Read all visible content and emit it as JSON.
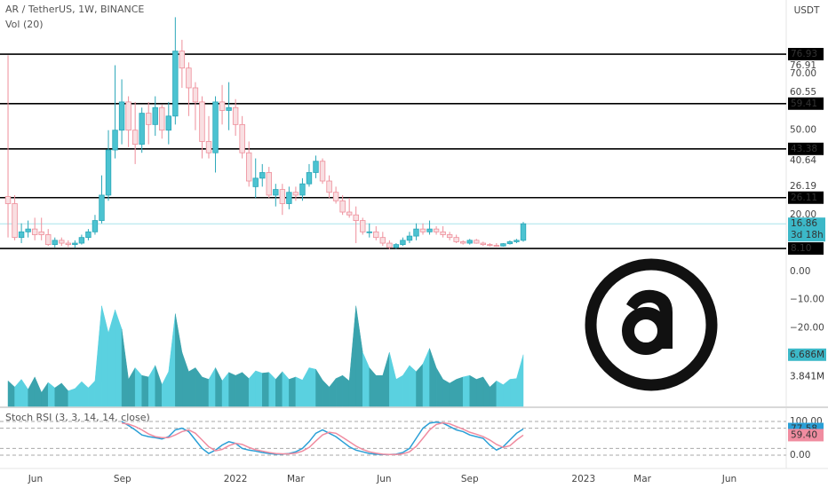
{
  "header": {
    "currency": "USDT"
  },
  "chart_data": [
    {
      "type": "candlestick",
      "title": "AR / TetherUS, 1W, BINANCE",
      "ylim": [
        -47.8,
        96.1
      ],
      "xlim": [
        -1.2,
        116.3
      ],
      "xticks": [
        {
          "value": 4.1,
          "label": "Jun"
        },
        {
          "value": 17.1,
          "label": "Sep"
        },
        {
          "value": 34,
          "label": "2022"
        },
        {
          "value": 43,
          "label": "Mar"
        },
        {
          "value": 56.2,
          "label": "Jun"
        },
        {
          "value": 69,
          "label": "Sep"
        },
        {
          "value": 86,
          "label": "2023"
        },
        {
          "value": 94.8,
          "label": "Mar"
        },
        {
          "value": 107.8,
          "label": "Jun"
        }
      ],
      "yticks": [
        76.91,
        {
          "value": 70,
          "label": "70.00"
        },
        60.55,
        {
          "value": 50,
          "label": "50.00"
        },
        40.64,
        26.19,
        {
          "value": 20,
          "label": "20.00"
        },
        8.51,
        {
          "value": 0,
          "label": "0.00"
        },
        {
          "value": -10,
          "label": "−10.00"
        },
        {
          "value": -20,
          "label": "−20.00"
        }
      ],
      "levels": [
        76.93,
        59.41,
        43.38,
        26.11,
        {
          "value": 8.1,
          "label": "8.10"
        }
      ],
      "countdown": "3d 18h",
      "colors": {
        "up": "#4cc3d1",
        "down": "#f9dfe2",
        "up_edge": "#2aa7b8",
        "down_edge": "#ee8e9a",
        "level": "#000000"
      },
      "candles": [
        [
          26.5,
          76.5,
          12,
          24
        ],
        [
          24,
          27,
          11,
          12
        ],
        [
          12,
          17,
          10,
          14
        ],
        [
          14,
          18,
          12,
          15
        ],
        [
          15,
          19,
          11,
          13
        ],
        [
          14,
          19,
          11,
          13
        ],
        [
          13,
          15,
          9,
          9.5
        ],
        [
          9.5,
          12,
          8.5,
          11
        ],
        [
          11,
          12,
          9,
          10
        ],
        [
          10,
          11,
          8.6,
          9.5
        ],
        [
          9.5,
          11,
          8.3,
          10
        ],
        [
          10,
          13,
          9.5,
          12
        ],
        [
          12,
          15,
          11,
          14
        ],
        [
          14,
          20,
          13,
          18
        ],
        [
          18,
          34,
          17,
          27
        ],
        [
          27,
          50,
          25,
          43
        ],
        [
          43,
          73,
          40,
          50
        ],
        [
          50,
          68,
          45,
          60
        ],
        [
          60,
          62,
          44,
          50
        ],
        [
          50,
          60,
          38,
          45
        ],
        [
          45,
          58,
          42,
          56
        ],
        [
          56,
          60,
          45,
          52
        ],
        [
          52,
          62,
          48,
          58
        ],
        [
          58,
          59,
          47,
          50
        ],
        [
          50,
          60,
          45,
          55
        ],
        [
          55,
          90,
          52,
          78
        ],
        [
          78,
          82,
          65,
          72
        ],
        [
          72,
          74,
          55,
          65
        ],
        [
          65,
          67,
          50,
          60
        ],
        [
          60,
          62,
          40,
          46
        ],
        [
          46,
          55,
          40,
          42
        ],
        [
          42,
          62,
          35,
          60
        ],
        [
          60,
          66,
          52,
          57
        ],
        [
          57,
          67,
          50,
          58
        ],
        [
          58,
          61,
          48,
          52
        ],
        [
          52,
          55,
          40,
          42
        ],
        [
          42,
          46,
          30,
          32
        ],
        [
          30,
          40,
          26,
          33
        ],
        [
          33,
          38,
          30,
          35
        ],
        [
          35,
          37,
          26,
          27
        ],
        [
          27,
          31,
          23,
          29
        ],
        [
          29,
          31,
          20,
          24
        ],
        [
          24,
          30,
          22,
          28
        ],
        [
          28,
          30,
          25,
          27
        ],
        [
          27,
          33,
          25,
          31
        ],
        [
          31,
          38,
          30,
          35
        ],
        [
          35,
          41,
          33,
          39
        ],
        [
          39,
          40,
          31,
          32
        ],
        [
          32,
          34,
          26,
          28
        ],
        [
          28,
          30,
          24,
          25
        ],
        [
          25,
          27,
          20,
          21
        ],
        [
          21,
          26,
          19,
          20
        ],
        [
          20,
          23,
          10,
          18
        ],
        [
          18,
          19,
          13,
          14
        ],
        [
          14,
          17,
          12,
          14
        ],
        [
          14,
          16,
          11,
          12
        ],
        [
          12,
          14,
          9,
          10
        ],
        [
          10,
          11,
          7.8,
          8.5
        ],
        [
          8.5,
          10,
          8,
          9.5
        ],
        [
          9.5,
          12,
          9,
          11
        ],
        [
          11,
          14,
          10,
          12.5
        ],
        [
          12.5,
          17,
          11,
          15
        ],
        [
          15,
          17,
          13,
          14
        ],
        [
          14,
          18,
          13,
          15
        ],
        [
          15,
          16,
          13,
          14
        ],
        [
          14,
          16,
          12,
          13
        ],
        [
          13,
          14,
          11,
          12
        ],
        [
          12,
          13,
          10,
          10.5
        ],
        [
          10.5,
          11,
          9.5,
          10
        ],
        [
          10,
          11.5,
          9.5,
          11
        ],
        [
          11,
          11.5,
          9.8,
          10
        ],
        [
          10,
          10.5,
          9,
          9.5
        ],
        [
          9.5,
          10,
          8.8,
          9.2
        ],
        [
          9.2,
          10,
          8.7,
          9
        ],
        [
          9,
          10,
          8.8,
          9.8
        ],
        [
          9.8,
          11,
          9.5,
          10.5
        ],
        [
          10.5,
          11.5,
          10,
          11
        ],
        [
          11,
          17.5,
          10.5,
          16.86
        ]
      ]
    },
    {
      "type": "area",
      "title": "Vol (20)",
      "ylim": [
        0,
        52.6
      ],
      "yticks": [
        {
          "value": 6.686,
          "label": "6.686M"
        },
        {
          "value": 3.841,
          "label": "3.841M"
        }
      ],
      "colors": {
        "up": "#5ad1e0",
        "down": "#3aa3ad",
        "box": "#3cb8c8"
      },
      "values": [
        3.3,
        2.5,
        3.5,
        2.2,
        3.8,
        1.8,
        3.1,
        2.4,
        3,
        2,
        2.3,
        3.2,
        2.4,
        3.3,
        13,
        9.5,
        12.5,
        10,
        3.5,
        5,
        4,
        3.8,
        5.3,
        2.8,
        4.5,
        12,
        7,
        4.5,
        5,
        3.8,
        3.5,
        5,
        3.3,
        4.4,
        4,
        4.4,
        3.6,
        4.6,
        4.3,
        4.4,
        3.5,
        4.5,
        3.5,
        3.8,
        3.4,
        5,
        4.8,
        3.4,
        2.5,
        3.6,
        4,
        3.3,
        13,
        7,
        5,
        4,
        4,
        7,
        3.5,
        4,
        5.3,
        4.5,
        5.5,
        7.5,
        5,
        3.5,
        3,
        3.5,
        3.8,
        4,
        3.5,
        3.8,
        2.5,
        3.3,
        2.8,
        3.5,
        3.6,
        6.686
      ]
    },
    {
      "type": "line",
      "title": "Stoch RSI (3, 3, 14, 14, close)",
      "ylim": [
        -23.7,
        134.2
      ],
      "yticks": [
        {
          "value": 100,
          "label": "100.00"
        },
        {
          "value": 0,
          "label": "0.00"
        }
      ],
      "bands": [
        80,
        20
      ],
      "series": [
        {
          "color": "#2a9fd6",
          "values": [
            null,
            null,
            null,
            null,
            null,
            null,
            null,
            null,
            null,
            null,
            null,
            null,
            null,
            null,
            null,
            null,
            null,
            100,
            88,
            75,
            60,
            55,
            52,
            48,
            55,
            75,
            80,
            70,
            45,
            20,
            5,
            15,
            30,
            40,
            35,
            20,
            15,
            12,
            8,
            5,
            3,
            3,
            5,
            10,
            20,
            40,
            65,
            75,
            65,
            55,
            40,
            25,
            15,
            10,
            5,
            3,
            2,
            2,
            3,
            8,
            20,
            50,
            80,
            95,
            98,
            95,
            85,
            75,
            70,
            60,
            55,
            50,
            30,
            15,
            25,
            45,
            65,
            77.58
          ]
        },
        {
          "color": "#f08ca0",
          "values": [
            null,
            null,
            null,
            null,
            null,
            null,
            null,
            null,
            null,
            null,
            null,
            null,
            null,
            null,
            null,
            null,
            null,
            95,
            92,
            85,
            75,
            63,
            55,
            52,
            52,
            60,
            70,
            75,
            65,
            45,
            25,
            13,
            17,
            28,
            35,
            32,
            23,
            16,
            12,
            8,
            5,
            4,
            4,
            6,
            12,
            23,
            42,
            60,
            68,
            65,
            53,
            40,
            27,
            17,
            10,
            6,
            3,
            2,
            2,
            4,
            10,
            26,
            50,
            75,
            91,
            96,
            93,
            85,
            77,
            68,
            62,
            55,
            45,
            32,
            23,
            28,
            45,
            59.4
          ],
          "value_labels": [
            null,
            null,
            null,
            null,
            null,
            null,
            null,
            null,
            null,
            null,
            null,
            null,
            null,
            null,
            null,
            null,
            null,
            null,
            null,
            null,
            null,
            null,
            null,
            null,
            null,
            null,
            null,
            null,
            null,
            null,
            null,
            null,
            null,
            null,
            null,
            null,
            null,
            null,
            null,
            null,
            null,
            null,
            null,
            null,
            null,
            null,
            null,
            null,
            null,
            null,
            null,
            null,
            null,
            null,
            null,
            null,
            null,
            null,
            null,
            null,
            null,
            null,
            null,
            null,
            null,
            null,
            null,
            null,
            null,
            null,
            null,
            null,
            null,
            null,
            null,
            null,
            null,
            "59.40"
          ]
        }
      ]
    }
  ]
}
